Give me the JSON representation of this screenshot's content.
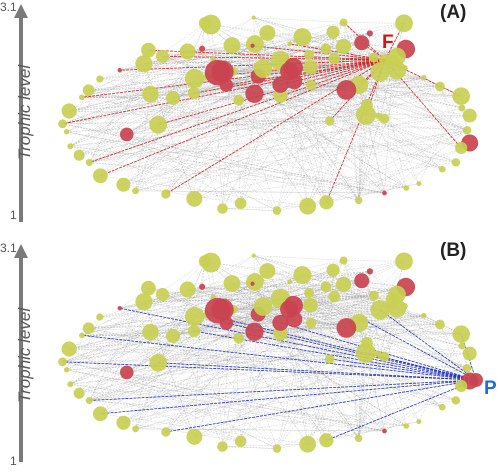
{
  "axis": {
    "title": "Trophic level",
    "top_tick": "3.1",
    "bottom_tick": "1"
  },
  "panels": [
    {
      "label": "(A)",
      "highlight_label": "F",
      "highlight_color": "#dd1111",
      "link_color": "#cc2222"
    },
    {
      "label": "(B)",
      "highlight_label": "P",
      "highlight_color": "#1a6fd6",
      "link_color": "#2233bb"
    }
  ],
  "colors": {
    "node_yellow": "#c9cf52",
    "node_red": "#c9434f",
    "edge_gray": "#9a9a9a",
    "axis_gray": "#7a7a7a"
  }
}
